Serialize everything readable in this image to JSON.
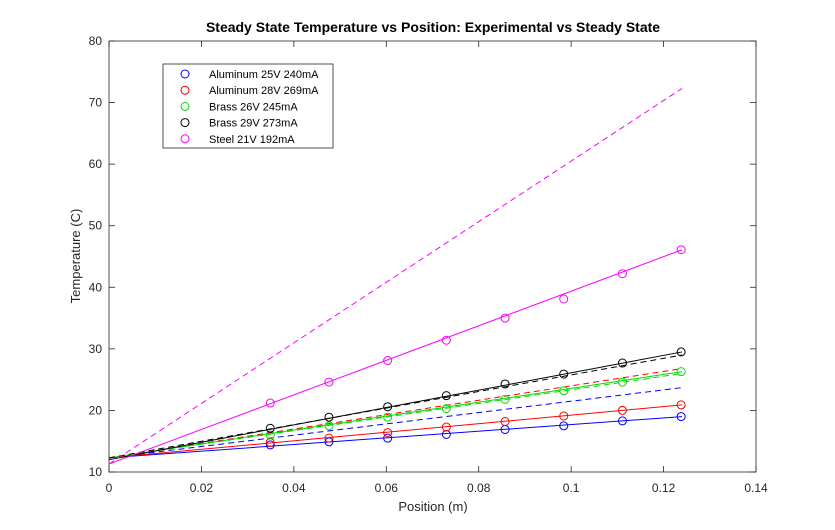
{
  "chart_data": {
    "type": "scatter",
    "title": "Steady State Temperature vs Position: Experimental vs Steady State",
    "xlabel": "Position (m)",
    "ylabel": "Temperature (C)",
    "xlim": [
      0,
      0.14
    ],
    "ylim": [
      10,
      80
    ],
    "x_ticks": [
      0,
      0.02,
      0.04,
      0.06,
      0.08,
      0.1,
      0.12,
      0.14
    ],
    "x_tick_labels": [
      "0",
      "0.02",
      "0.04",
      "0.06",
      "0.08",
      "0.1",
      "0.12",
      "0.14"
    ],
    "y_ticks": [
      10,
      20,
      30,
      40,
      50,
      60,
      70,
      80
    ],
    "y_tick_labels": [
      "10",
      "20",
      "30",
      "40",
      "50",
      "60",
      "70",
      "80"
    ],
    "grid": false,
    "legend_position": "top-left",
    "series": [
      {
        "name": "Aluminum 25V 240mA",
        "color": "#0000ff",
        "x": [
          0.0349,
          0.0476,
          0.0603,
          0.073,
          0.0857,
          0.0984,
          0.1111,
          0.1238
        ],
        "y": [
          14.4,
          14.9,
          15.5,
          16.1,
          16.9,
          17.5,
          18.3,
          19.0
        ],
        "fit_line": [
          [
            0,
            12.3
          ],
          [
            0.124,
            19.0
          ]
        ],
        "steady_state_line": [
          [
            0,
            12.3
          ],
          [
            0.124,
            23.7
          ]
        ]
      },
      {
        "name": "Aluminum 28V 269mA",
        "color": "#ff0000",
        "x": [
          0.0349,
          0.0476,
          0.0603,
          0.073,
          0.0857,
          0.0984,
          0.1111,
          0.1238
        ],
        "y": [
          14.8,
          15.5,
          16.4,
          17.3,
          18.2,
          19.1,
          20.0,
          20.9
        ],
        "fit_line": [
          [
            0,
            12.3
          ],
          [
            0.124,
            20.9
          ]
        ],
        "steady_state_line": [
          [
            0,
            12.3
          ],
          [
            0.124,
            26.8
          ]
        ]
      },
      {
        "name": "Brass 26V 245mA",
        "color": "#00dd00",
        "x": [
          0.0349,
          0.0476,
          0.0603,
          0.073,
          0.0857,
          0.0984,
          0.1111,
          0.1238
        ],
        "y": [
          16.0,
          17.5,
          18.9,
          20.3,
          21.8,
          23.2,
          24.6,
          26.3
        ],
        "fit_line": [
          [
            0,
            12.3
          ],
          [
            0.124,
            26.3
          ]
        ],
        "steady_state_line": [
          [
            0,
            12.3
          ],
          [
            0.124,
            26.0
          ]
        ]
      },
      {
        "name": "Brass 29V 273mA",
        "color": "#000000",
        "x": [
          0.0349,
          0.0476,
          0.0603,
          0.073,
          0.0857,
          0.0984,
          0.1111,
          0.1238
        ],
        "y": [
          17.1,
          18.9,
          20.6,
          22.4,
          24.3,
          25.9,
          27.7,
          29.5
        ],
        "fit_line": [
          [
            0,
            12.0
          ],
          [
            0.124,
            29.5
          ]
        ],
        "steady_state_line": [
          [
            0,
            12.3
          ],
          [
            0.124,
            29.0
          ]
        ]
      },
      {
        "name": "Steel 21V 192mA",
        "color": "#ff00ff",
        "x": [
          0.0349,
          0.0476,
          0.0603,
          0.073,
          0.0857,
          0.0984,
          0.1111,
          0.1238
        ],
        "y": [
          21.2,
          24.6,
          28.1,
          31.4,
          35.0,
          38.1,
          42.2,
          46.1
        ],
        "fit_line": [
          [
            0,
            11.3
          ],
          [
            0.124,
            46.1
          ]
        ],
        "steady_state_line": [
          [
            0,
            11.3
          ],
          [
            0.124,
            72.3
          ]
        ]
      }
    ]
  }
}
